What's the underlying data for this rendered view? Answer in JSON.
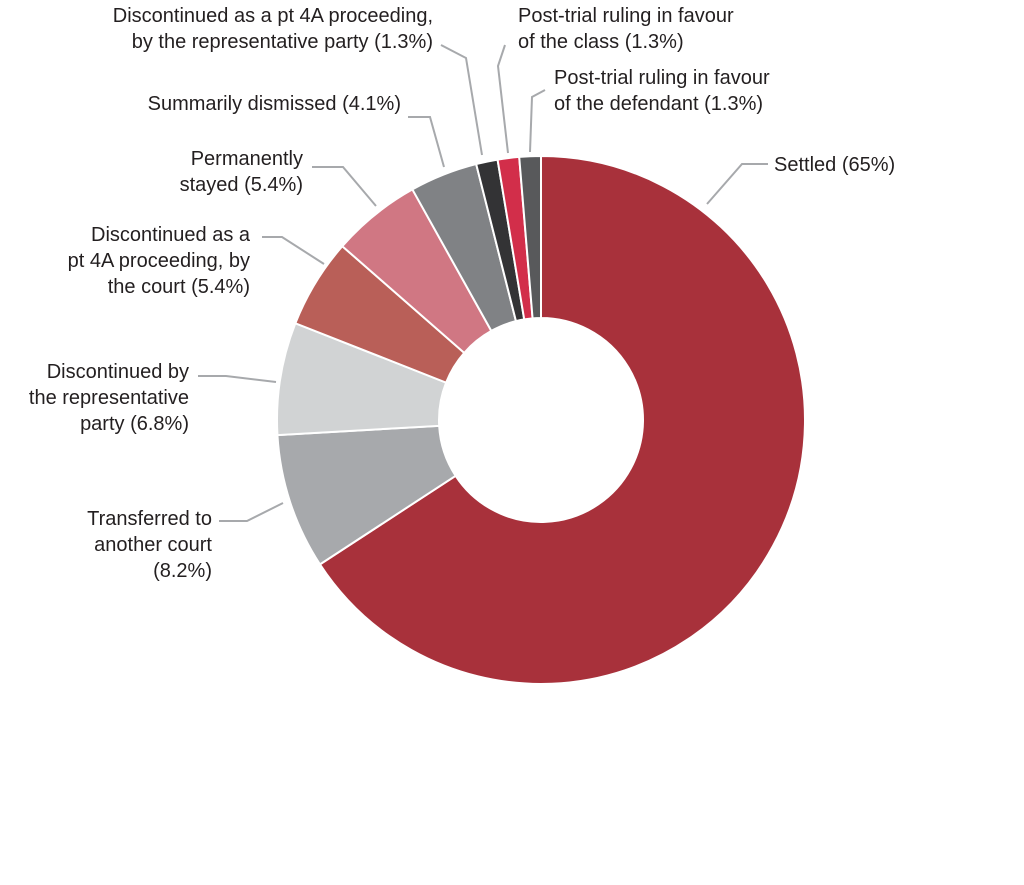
{
  "chart_data": {
    "type": "pie",
    "donut": true,
    "title": "",
    "unit": "%",
    "slices": [
      {
        "label": "Settled (65%)",
        "value": 65,
        "color": "#a8313b"
      },
      {
        "label": "Transferred to another court (8.2%)",
        "value": 8.2,
        "color": "#a7a9ac"
      },
      {
        "label": "Discontinued by the representative party (6.8%)",
        "value": 6.8,
        "color": "#d1d3d4"
      },
      {
        "label": "Discontinued as a pt 4A proceeding, by the court (5.4%)",
        "value": 5.4,
        "color": "#b95f58"
      },
      {
        "label": "Permanently stayed (5.4%)",
        "value": 5.4,
        "color": "#d07783"
      },
      {
        "label": "Summarily dismissed (4.1%)",
        "value": 4.1,
        "color": "#808285"
      },
      {
        "label": "Discontinued as a pt 4A proceeding, by the representative party (1.3%)",
        "value": 1.3,
        "color": "#333335"
      },
      {
        "label": "Post-trial ruling in favour of the class (1.3%)",
        "value": 1.3,
        "color": "#d22e4a"
      },
      {
        "label": "Post-trial ruling in favour of the defendant (1.3%)",
        "value": 1.3,
        "color": "#58595b"
      }
    ]
  },
  "labels": {
    "settled": [
      "Settled (65%)"
    ],
    "transferred": [
      "Transferred to",
      "another court",
      "(8.2%)"
    ],
    "disc_rep": [
      "Discontinued by",
      "the representative",
      "party (6.8%)"
    ],
    "disc_court": [
      "Discontinued as a",
      "pt 4A proceeding, by",
      "the court (5.4%)"
    ],
    "stayed": [
      "Permanently",
      "stayed (5.4%)"
    ],
    "dismissed": [
      "Summarily dismissed (4.1%)"
    ],
    "disc_pt4a_rep": [
      "Discontinued as a pt 4A proceeding,",
      "by the representative party (1.3%)"
    ],
    "class": [
      "Post-trial ruling in favour",
      "of the class (1.3%)"
    ],
    "defendant": [
      "Post-trial ruling in favour",
      "of the defendant (1.3%)"
    ]
  }
}
